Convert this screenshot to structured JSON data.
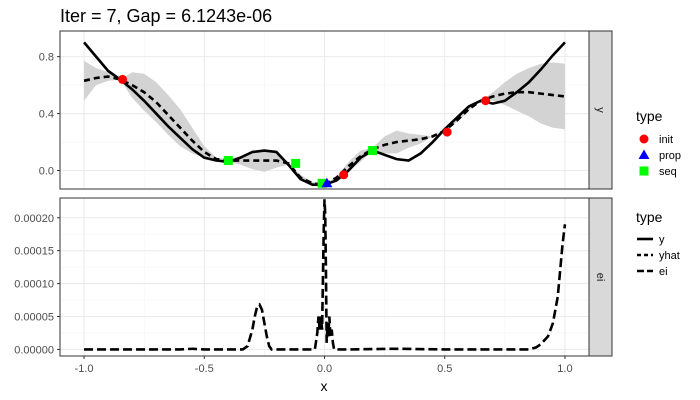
{
  "chart_data": {
    "type": "line",
    "title": "Iter = 7, Gap = 6.1243e-06",
    "xlabel": "x",
    "xlim": [
      -1.1,
      1.1
    ],
    "xticks": [
      "-1.0",
      "-0.5",
      "0.0",
      "0.5",
      "1.0"
    ],
    "xtick_values": [
      -1.0,
      -0.5,
      0.0,
      0.5,
      1.0
    ],
    "facets": [
      {
        "strip": "y",
        "ylim": [
          -0.13,
          0.98
        ],
        "yticks": [
          "0.0",
          "0.4",
          "0.8"
        ],
        "ytick_values": [
          0.0,
          0.4,
          0.8
        ],
        "y_true": {
          "x": [
            -1.0,
            -0.95,
            -0.9,
            -0.85,
            -0.8,
            -0.75,
            -0.7,
            -0.65,
            -0.6,
            -0.55,
            -0.5,
            -0.45,
            -0.4,
            -0.35,
            -0.3,
            -0.25,
            -0.2,
            -0.15,
            -0.1,
            -0.05,
            0.0,
            0.05,
            0.1,
            0.15,
            0.2,
            0.25,
            0.3,
            0.35,
            0.4,
            0.45,
            0.5,
            0.55,
            0.6,
            0.65,
            0.7,
            0.75,
            0.8,
            0.85,
            0.9,
            0.95,
            1.0
          ],
          "y": [
            0.9,
            0.8,
            0.7,
            0.64,
            0.57,
            0.49,
            0.4,
            0.31,
            0.23,
            0.15,
            0.09,
            0.07,
            0.06,
            0.09,
            0.13,
            0.14,
            0.13,
            0.04,
            -0.06,
            -0.1,
            -0.1,
            -0.07,
            0.0,
            0.09,
            0.14,
            0.11,
            0.08,
            0.07,
            0.12,
            0.2,
            0.29,
            0.37,
            0.45,
            0.49,
            0.47,
            0.49,
            0.55,
            0.62,
            0.71,
            0.81,
            0.9
          ]
        },
        "yhat": {
          "x": [
            -1.0,
            -0.95,
            -0.9,
            -0.85,
            -0.8,
            -0.75,
            -0.7,
            -0.65,
            -0.6,
            -0.55,
            -0.5,
            -0.45,
            -0.4,
            -0.35,
            -0.3,
            -0.25,
            -0.2,
            -0.15,
            -0.1,
            -0.05,
            0.0,
            0.05,
            0.1,
            0.15,
            0.2,
            0.25,
            0.3,
            0.35,
            0.4,
            0.45,
            0.5,
            0.55,
            0.6,
            0.65,
            0.7,
            0.75,
            0.8,
            0.85,
            0.9,
            0.95,
            1.0
          ],
          "y": [
            0.63,
            0.65,
            0.66,
            0.64,
            0.6,
            0.55,
            0.48,
            0.39,
            0.3,
            0.21,
            0.13,
            0.08,
            0.07,
            0.07,
            0.07,
            0.07,
            0.07,
            0.05,
            -0.05,
            -0.09,
            -0.1,
            -0.05,
            0.03,
            0.1,
            0.15,
            0.18,
            0.2,
            0.21,
            0.22,
            0.24,
            0.28,
            0.35,
            0.43,
            0.49,
            0.52,
            0.54,
            0.55,
            0.55,
            0.54,
            0.53,
            0.52
          ]
        },
        "band": {
          "x": [
            -1.0,
            -0.95,
            -0.9,
            -0.85,
            -0.8,
            -0.75,
            -0.7,
            -0.65,
            -0.6,
            -0.55,
            -0.5,
            -0.45,
            -0.4,
            -0.35,
            -0.3,
            -0.25,
            -0.2,
            -0.15,
            -0.1,
            -0.05,
            0.0,
            0.05,
            0.1,
            0.15,
            0.2,
            0.25,
            0.3,
            0.35,
            0.4,
            0.45,
            0.5,
            0.55,
            0.6,
            0.65,
            0.7,
            0.75,
            0.8,
            0.85,
            0.9,
            0.95,
            1.0
          ],
          "lower": [
            0.49,
            0.6,
            0.63,
            0.64,
            0.51,
            0.42,
            0.34,
            0.25,
            0.17,
            0.12,
            0.09,
            0.07,
            0.06,
            0.04,
            0.01,
            -0.01,
            0.02,
            0.04,
            -0.07,
            -0.1,
            -0.1,
            -0.06,
            0.0,
            0.06,
            0.14,
            0.12,
            0.12,
            0.16,
            0.19,
            0.24,
            0.27,
            0.34,
            0.42,
            0.49,
            0.49,
            0.46,
            0.42,
            0.38,
            0.33,
            0.3,
            0.29
          ],
          "upper": [
            0.77,
            0.72,
            0.69,
            0.64,
            0.69,
            0.68,
            0.62,
            0.53,
            0.43,
            0.3,
            0.17,
            0.09,
            0.08,
            0.1,
            0.13,
            0.15,
            0.12,
            0.06,
            -0.03,
            -0.08,
            -0.1,
            -0.04,
            0.06,
            0.14,
            0.16,
            0.24,
            0.28,
            0.26,
            0.25,
            0.24,
            0.29,
            0.36,
            0.44,
            0.49,
            0.55,
            0.62,
            0.68,
            0.72,
            0.75,
            0.76,
            0.75
          ]
        },
        "points": [
          {
            "type": "init",
            "x": -0.84,
            "y": 0.64
          },
          {
            "type": "init",
            "x": 0.08,
            "y": -0.03
          },
          {
            "type": "init",
            "x": 0.51,
            "y": 0.27
          },
          {
            "type": "init",
            "x": 0.67,
            "y": 0.49
          },
          {
            "type": "seq",
            "x": -0.4,
            "y": 0.07
          },
          {
            "type": "seq",
            "x": -0.12,
            "y": 0.05
          },
          {
            "type": "seq",
            "x": 0.2,
            "y": 0.14
          },
          {
            "type": "seq",
            "x": -0.01,
            "y": -0.09
          },
          {
            "type": "prop",
            "x": 0.01,
            "y": -0.09
          }
        ]
      },
      {
        "strip": "ei",
        "ylim": [
          -1e-05,
          0.00023
        ],
        "yticks": [
          "0.00000",
          "0.00005",
          "0.00010",
          "0.00015",
          "0.00020"
        ],
        "ytick_values": [
          0.0,
          5e-05,
          0.0001,
          0.00015,
          0.0002
        ],
        "ei": {
          "x": [
            -1.0,
            -0.6,
            -0.55,
            -0.5,
            -0.4,
            -0.34,
            -0.32,
            -0.3,
            -0.29,
            -0.28,
            -0.27,
            -0.26,
            -0.25,
            -0.24,
            -0.23,
            -0.22,
            -0.2,
            -0.1,
            -0.04,
            -0.03,
            -0.025,
            -0.02,
            -0.015,
            -0.01,
            -0.006,
            -0.003,
            0.0,
            0.003,
            0.006,
            0.009,
            0.012,
            0.016,
            0.02,
            0.025,
            0.03,
            0.035,
            0.04,
            0.05,
            0.1,
            0.3,
            0.5,
            0.7,
            0.85,
            0.88,
            0.9,
            0.93,
            0.95,
            0.97,
            0.98,
            0.99,
            1.0
          ],
          "y": [
            0.0,
            0.0,
            1e-06,
            0.0,
            0.0,
            0.0,
            5e-06,
            3e-05,
            5e-05,
            6.5e-05,
            6.8e-05,
            6e-05,
            4e-05,
            2e-05,
            5e-06,
            0.0,
            0.0,
            0.0,
            0.0,
            2.5e-05,
            5e-05,
            3e-05,
            5e-05,
            3e-05,
            0.00012,
            0.000185,
            0.000228,
            0.000205,
            0.00012,
            1e-05,
            3.5e-05,
            2e-05,
            5e-05,
            2e-05,
            3e-05,
            1e-05,
            0.0,
            0.0,
            0.0,
            1e-06,
            0.0,
            0.0,
            0.0,
            3e-06,
            8e-06,
            2e-05,
            4e-05,
            8e-05,
            0.00012,
            0.00016,
            0.00019
          ]
        }
      }
    ],
    "legend": {
      "placement": "right",
      "groups": [
        {
          "title": "type",
          "items": [
            {
              "label": "init",
              "shape": "circle",
              "color": "#ff0000"
            },
            {
              "label": "prop",
              "shape": "triangle",
              "color": "#0000ff"
            },
            {
              "label": "seq",
              "shape": "square",
              "color": "#00ff00"
            }
          ]
        },
        {
          "title": "type",
          "items": [
            {
              "label": "y",
              "linetype": "solid"
            },
            {
              "label": "yhat",
              "linetype": "dashed"
            },
            {
              "label": "ei",
              "linetype": "longdash"
            }
          ]
        }
      ]
    },
    "colors": {
      "panel_border": "#333333",
      "grid_major": "#ebebeb",
      "grid_minor": "#f5f5f5",
      "strip_fill": "#d9d9d9",
      "band_fill": "#d3d3d3",
      "line": "#000000"
    }
  }
}
